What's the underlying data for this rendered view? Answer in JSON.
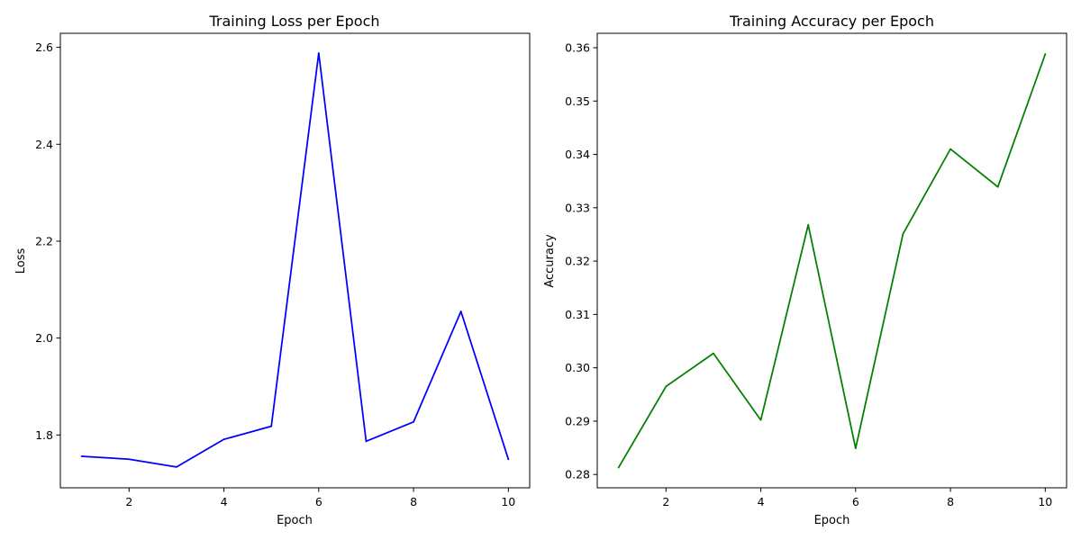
{
  "chart_data": [
    {
      "type": "line",
      "title": "Training Loss per Epoch",
      "xlabel": "Epoch",
      "ylabel": "Loss",
      "xlim": [
        0.55,
        10.45
      ],
      "ylim": [
        1.691,
        2.629
      ],
      "xticks": [
        2,
        4,
        6,
        8,
        10
      ],
      "yticks": [
        1.8,
        2.0,
        2.2,
        2.4,
        2.6
      ],
      "xtick_labels": [
        "2",
        "4",
        "6",
        "8",
        "10"
      ],
      "ytick_labels": [
        "1.8",
        "2.0",
        "2.2",
        "2.4",
        "2.6"
      ],
      "grid": false,
      "legend": "none",
      "series": [
        {
          "color": "#0000ff",
          "x": [
            1,
            2,
            3,
            4,
            5,
            6,
            7,
            8,
            9,
            10
          ],
          "y": [
            1.756,
            1.75,
            1.734,
            1.791,
            1.818,
            2.588,
            1.787,
            1.827,
            2.055,
            1.75
          ]
        }
      ]
    },
    {
      "type": "line",
      "title": "Training Accuracy per Epoch",
      "xlabel": "Epoch",
      "ylabel": "Accuracy",
      "xlim": [
        0.55,
        10.45
      ],
      "ylim": [
        0.2775,
        0.3627
      ],
      "xticks": [
        2,
        4,
        6,
        8,
        10
      ],
      "yticks": [
        0.28,
        0.29,
        0.3,
        0.31,
        0.32,
        0.33,
        0.34,
        0.35,
        0.36
      ],
      "xtick_labels": [
        "2",
        "4",
        "6",
        "8",
        "10"
      ],
      "ytick_labels": [
        "0.28",
        "0.29",
        "0.30",
        "0.31",
        "0.32",
        "0.33",
        "0.34",
        "0.35",
        "0.36"
      ],
      "grid": false,
      "legend": "none",
      "series": [
        {
          "color": "#008000",
          "x": [
            1,
            2,
            3,
            4,
            5,
            6,
            7,
            8,
            9,
            10
          ],
          "y": [
            0.2813,
            0.2965,
            0.3027,
            0.2902,
            0.3268,
            0.2849,
            0.3251,
            0.341,
            0.3339,
            0.3588
          ]
        }
      ]
    }
  ]
}
